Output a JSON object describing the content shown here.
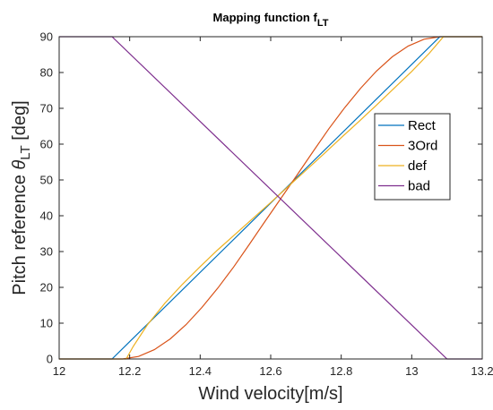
{
  "chart_data": {
    "type": "line",
    "title": "Mapping function f",
    "title_subscript": "LT",
    "xlabel": "Wind velocity[m/s]",
    "ylabel_prefix": "Pitch reference ",
    "ylabel_symbol": "θ",
    "ylabel_subscript": "LT",
    "ylabel_suffix": " [deg]",
    "xlim": [
      12,
      13.2
    ],
    "ylim": [
      0,
      90
    ],
    "xticks": [
      12,
      12.2,
      12.4,
      12.6,
      12.8,
      13,
      13.2
    ],
    "xtick_labels": [
      "12",
      "12.2",
      "12.4",
      "12.6",
      "12.8",
      "13",
      "13.2"
    ],
    "yticks": [
      0,
      10,
      20,
      30,
      40,
      50,
      60,
      70,
      80,
      90
    ],
    "ytick_labels": [
      "0",
      "10",
      "20",
      "30",
      "40",
      "50",
      "60",
      "70",
      "80",
      "90"
    ],
    "grid": false,
    "legend_position": "right",
    "series": [
      {
        "name": "Rect",
        "color": "#0072BD",
        "x": [
          12,
          12.15,
          13.08,
          13.2
        ],
        "y": [
          0,
          0,
          90,
          90
        ]
      },
      {
        "name": "3Ord",
        "color": "#D95319",
        "x": [
          12,
          12.18,
          12.225,
          12.27,
          12.315,
          12.36,
          12.405,
          12.45,
          12.495,
          12.54,
          12.585,
          12.63,
          12.675,
          12.72,
          12.765,
          12.81,
          12.855,
          12.9,
          12.945,
          12.99,
          13.035,
          13.08,
          13.2
        ],
        "y": [
          0,
          0,
          0.7,
          2.6,
          5.6,
          9.6,
          14.4,
          19.8,
          25.7,
          32.1,
          38.6,
          45.0,
          51.4,
          57.9,
          64.3,
          70.2,
          75.6,
          80.4,
          84.4,
          87.4,
          89.3,
          90,
          90
        ]
      },
      {
        "name": "def",
        "color": "#EDB120",
        "x": [
          12,
          12.19,
          12.21,
          12.25,
          12.3,
          12.35,
          12.4,
          12.45,
          12.5,
          12.55,
          12.6,
          12.65,
          12.7,
          12.75,
          12.8,
          12.85,
          12.9,
          12.95,
          13.0,
          13.05,
          13.09,
          13.2
        ],
        "y": [
          0,
          0,
          3.5,
          9.5,
          15.6,
          20.9,
          25.8,
          30.5,
          34.9,
          39.3,
          43.7,
          48.2,
          52.7,
          57.2,
          61.8,
          66.3,
          70.9,
          75.6,
          80.3,
          85.4,
          90,
          90
        ]
      },
      {
        "name": "bad",
        "color": "#7E2F8E",
        "x": [
          12,
          12.15,
          13.1,
          13.2
        ],
        "y": [
          90,
          90,
          0,
          0
        ]
      }
    ]
  }
}
